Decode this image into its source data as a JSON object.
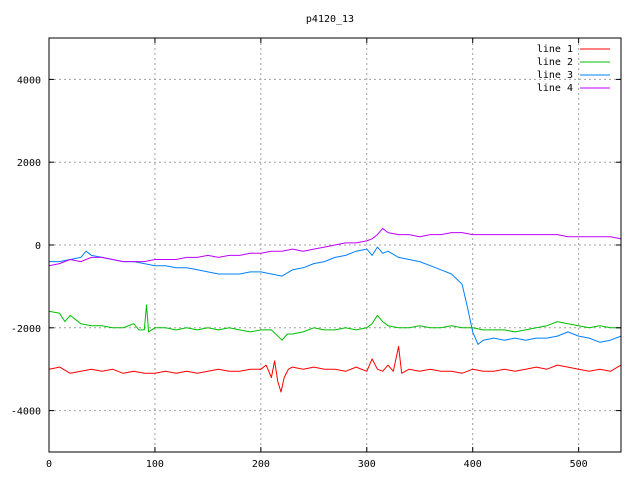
{
  "chart_data": {
    "type": "line",
    "title": "p4120_13",
    "xlabel": "",
    "ylabel": "",
    "xlim": [
      0,
      540
    ],
    "ylim": [
      -5000,
      5000
    ],
    "x_ticks": [
      0,
      100,
      200,
      300,
      400,
      500
    ],
    "y_ticks": [
      -4000,
      -2000,
      0,
      2000,
      4000
    ],
    "grid": true,
    "legend_position": "top-right",
    "series": [
      {
        "name": "line 1",
        "color": "#ff0000",
        "points": [
          [
            0,
            -3000
          ],
          [
            10,
            -2950
          ],
          [
            20,
            -3100
          ],
          [
            30,
            -3050
          ],
          [
            40,
            -3000
          ],
          [
            50,
            -3050
          ],
          [
            60,
            -3000
          ],
          [
            70,
            -3100
          ],
          [
            80,
            -3050
          ],
          [
            90,
            -3100
          ],
          [
            100,
            -3100
          ],
          [
            110,
            -3050
          ],
          [
            120,
            -3100
          ],
          [
            130,
            -3050
          ],
          [
            140,
            -3100
          ],
          [
            150,
            -3050
          ],
          [
            160,
            -3000
          ],
          [
            170,
            -3050
          ],
          [
            180,
            -3050
          ],
          [
            190,
            -3000
          ],
          [
            200,
            -3000
          ],
          [
            205,
            -2900
          ],
          [
            210,
            -3200
          ],
          [
            213,
            -2800
          ],
          [
            216,
            -3300
          ],
          [
            219,
            -3550
          ],
          [
            222,
            -3200
          ],
          [
            226,
            -3000
          ],
          [
            230,
            -2950
          ],
          [
            240,
            -3000
          ],
          [
            250,
            -2950
          ],
          [
            260,
            -3000
          ],
          [
            270,
            -3000
          ],
          [
            280,
            -3050
          ],
          [
            290,
            -2950
          ],
          [
            300,
            -3050
          ],
          [
            305,
            -2750
          ],
          [
            310,
            -3000
          ],
          [
            315,
            -3050
          ],
          [
            320,
            -2900
          ],
          [
            325,
            -3050
          ],
          [
            330,
            -2450
          ],
          [
            333,
            -3100
          ],
          [
            340,
            -3000
          ],
          [
            350,
            -3050
          ],
          [
            360,
            -3000
          ],
          [
            370,
            -3050
          ],
          [
            380,
            -3050
          ],
          [
            390,
            -3100
          ],
          [
            400,
            -3000
          ],
          [
            410,
            -3050
          ],
          [
            420,
            -3050
          ],
          [
            430,
            -3000
          ],
          [
            440,
            -3050
          ],
          [
            450,
            -3000
          ],
          [
            460,
            -2950
          ],
          [
            470,
            -3000
          ],
          [
            480,
            -2900
          ],
          [
            490,
            -2950
          ],
          [
            500,
            -3000
          ],
          [
            510,
            -3050
          ],
          [
            520,
            -3000
          ],
          [
            530,
            -3050
          ],
          [
            540,
            -2900
          ]
        ]
      },
      {
        "name": "line 2",
        "color": "#00c000",
        "points": [
          [
            0,
            -1600
          ],
          [
            10,
            -1650
          ],
          [
            15,
            -1850
          ],
          [
            20,
            -1700
          ],
          [
            30,
            -1900
          ],
          [
            40,
            -1950
          ],
          [
            50,
            -1950
          ],
          [
            60,
            -2000
          ],
          [
            70,
            -2000
          ],
          [
            80,
            -1900
          ],
          [
            85,
            -2050
          ],
          [
            90,
            -2050
          ],
          [
            92,
            -1450
          ],
          [
            94,
            -2100
          ],
          [
            100,
            -2000
          ],
          [
            110,
            -2000
          ],
          [
            120,
            -2050
          ],
          [
            130,
            -2000
          ],
          [
            140,
            -2050
          ],
          [
            150,
            -2000
          ],
          [
            160,
            -2050
          ],
          [
            170,
            -2000
          ],
          [
            180,
            -2050
          ],
          [
            190,
            -2100
          ],
          [
            200,
            -2050
          ],
          [
            210,
            -2050
          ],
          [
            220,
            -2300
          ],
          [
            225,
            -2150
          ],
          [
            230,
            -2150
          ],
          [
            240,
            -2100
          ],
          [
            250,
            -2000
          ],
          [
            260,
            -2050
          ],
          [
            270,
            -2050
          ],
          [
            280,
            -2000
          ],
          [
            290,
            -2050
          ],
          [
            300,
            -2000
          ],
          [
            305,
            -1900
          ],
          [
            310,
            -1700
          ],
          [
            315,
            -1850
          ],
          [
            320,
            -1950
          ],
          [
            330,
            -2000
          ],
          [
            340,
            -2000
          ],
          [
            350,
            -1950
          ],
          [
            360,
            -2000
          ],
          [
            370,
            -2000
          ],
          [
            380,
            -1950
          ],
          [
            390,
            -2000
          ],
          [
            400,
            -2000
          ],
          [
            410,
            -2050
          ],
          [
            420,
            -2050
          ],
          [
            430,
            -2050
          ],
          [
            440,
            -2100
          ],
          [
            450,
            -2050
          ],
          [
            460,
            -2000
          ],
          [
            470,
            -1950
          ],
          [
            480,
            -1850
          ],
          [
            490,
            -1900
          ],
          [
            500,
            -1950
          ],
          [
            510,
            -2000
          ],
          [
            520,
            -1950
          ],
          [
            530,
            -2000
          ],
          [
            540,
            -2000
          ]
        ]
      },
      {
        "name": "line 3",
        "color": "#0080ff",
        "points": [
          [
            0,
            -400
          ],
          [
            10,
            -400
          ],
          [
            20,
            -350
          ],
          [
            30,
            -300
          ],
          [
            35,
            -150
          ],
          [
            40,
            -250
          ],
          [
            50,
            -300
          ],
          [
            60,
            -350
          ],
          [
            70,
            -400
          ],
          [
            80,
            -400
          ],
          [
            90,
            -450
          ],
          [
            100,
            -500
          ],
          [
            110,
            -500
          ],
          [
            120,
            -550
          ],
          [
            130,
            -550
          ],
          [
            140,
            -600
          ],
          [
            150,
            -650
          ],
          [
            160,
            -700
          ],
          [
            170,
            -700
          ],
          [
            180,
            -700
          ],
          [
            190,
            -650
          ],
          [
            200,
            -650
          ],
          [
            210,
            -700
          ],
          [
            220,
            -750
          ],
          [
            230,
            -600
          ],
          [
            240,
            -550
          ],
          [
            250,
            -450
          ],
          [
            260,
            -400
          ],
          [
            270,
            -300
          ],
          [
            280,
            -250
          ],
          [
            290,
            -150
          ],
          [
            300,
            -100
          ],
          [
            305,
            -250
          ],
          [
            310,
            -50
          ],
          [
            315,
            -200
          ],
          [
            320,
            -150
          ],
          [
            330,
            -300
          ],
          [
            340,
            -350
          ],
          [
            350,
            -400
          ],
          [
            360,
            -500
          ],
          [
            370,
            -600
          ],
          [
            380,
            -700
          ],
          [
            390,
            -950
          ],
          [
            395,
            -1500
          ],
          [
            400,
            -2100
          ],
          [
            405,
            -2400
          ],
          [
            410,
            -2300
          ],
          [
            420,
            -2250
          ],
          [
            430,
            -2300
          ],
          [
            440,
            -2250
          ],
          [
            450,
            -2300
          ],
          [
            460,
            -2250
          ],
          [
            470,
            -2250
          ],
          [
            480,
            -2200
          ],
          [
            490,
            -2100
          ],
          [
            500,
            -2200
          ],
          [
            510,
            -2250
          ],
          [
            520,
            -2350
          ],
          [
            530,
            -2300
          ],
          [
            540,
            -2200
          ]
        ]
      },
      {
        "name": "line 4",
        "color": "#c000ff",
        "points": [
          [
            0,
            -500
          ],
          [
            10,
            -450
          ],
          [
            20,
            -350
          ],
          [
            30,
            -400
          ],
          [
            40,
            -300
          ],
          [
            50,
            -300
          ],
          [
            60,
            -350
          ],
          [
            70,
            -400
          ],
          [
            80,
            -400
          ],
          [
            90,
            -400
          ],
          [
            100,
            -350
          ],
          [
            110,
            -350
          ],
          [
            120,
            -350
          ],
          [
            130,
            -300
          ],
          [
            140,
            -300
          ],
          [
            150,
            -250
          ],
          [
            160,
            -300
          ],
          [
            170,
            -250
          ],
          [
            180,
            -250
          ],
          [
            190,
            -200
          ],
          [
            200,
            -200
          ],
          [
            210,
            -150
          ],
          [
            220,
            -150
          ],
          [
            230,
            -100
          ],
          [
            240,
            -150
          ],
          [
            250,
            -100
          ],
          [
            260,
            -50
          ],
          [
            270,
            0
          ],
          [
            280,
            50
          ],
          [
            290,
            50
          ],
          [
            300,
            100
          ],
          [
            305,
            150
          ],
          [
            310,
            250
          ],
          [
            315,
            400
          ],
          [
            320,
            300
          ],
          [
            330,
            250
          ],
          [
            340,
            250
          ],
          [
            350,
            200
          ],
          [
            360,
            250
          ],
          [
            370,
            250
          ],
          [
            380,
            300
          ],
          [
            390,
            300
          ],
          [
            400,
            250
          ],
          [
            410,
            250
          ],
          [
            420,
            250
          ],
          [
            430,
            250
          ],
          [
            440,
            250
          ],
          [
            450,
            250
          ],
          [
            460,
            250
          ],
          [
            470,
            250
          ],
          [
            480,
            250
          ],
          [
            490,
            200
          ],
          [
            500,
            200
          ],
          [
            510,
            200
          ],
          [
            520,
            200
          ],
          [
            530,
            200
          ],
          [
            540,
            150
          ]
        ]
      }
    ]
  }
}
